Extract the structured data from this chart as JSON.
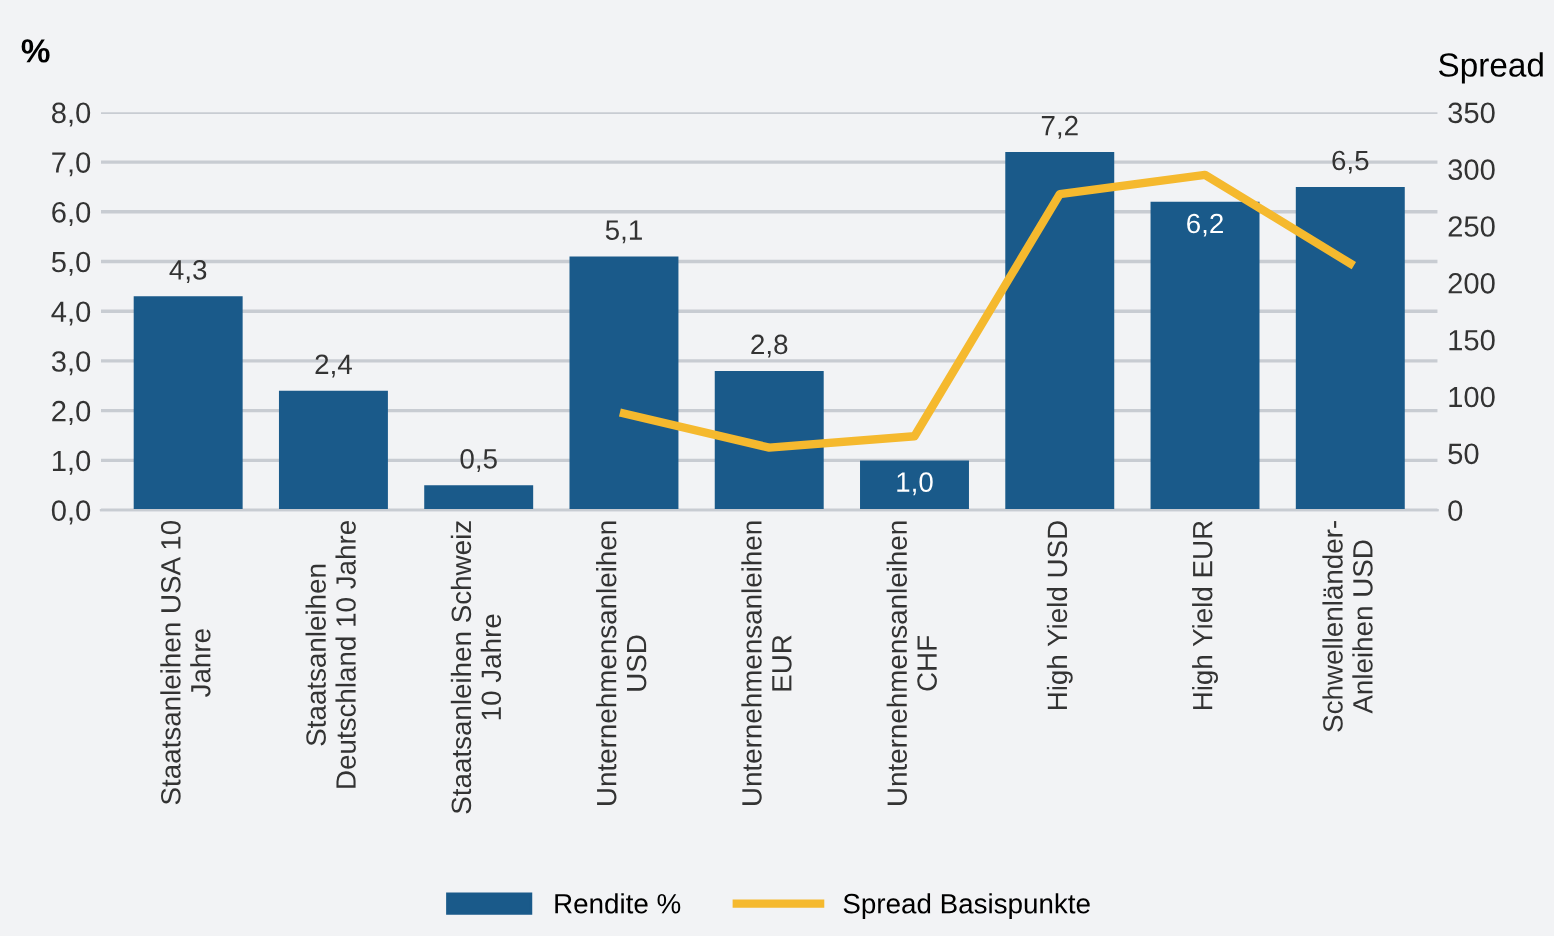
{
  "chart_data": {
    "type": "bar",
    "categories": [
      "Staatsanleihen USA 10\nJahre",
      "Staatsanleihen\nDeutschland 10 Jahre",
      "Staatsanleihen Schweiz\n10 Jahre",
      "Unternehmensanleihen\nUSD",
      "Unternehmensanleihen\nEUR",
      "Unternehmensanleihen\nCHF",
      "High Yield USD",
      "High Yield EUR",
      "Schwellenländer-\nAnleihen USD"
    ],
    "series": [
      {
        "name": "Rendite %",
        "type": "bar",
        "color": "#1a5a8a",
        "values": [
          4.3,
          2.4,
          0.5,
          5.1,
          2.8,
          1.0,
          7.2,
          6.2,
          6.5
        ],
        "value_labels": [
          "4,3",
          "2,4",
          "0,5",
          "5,1",
          "2,8",
          "1,0",
          "7,2",
          "6,2",
          "6,5"
        ]
      },
      {
        "name": "Spread Basispunkte",
        "type": "line",
        "axis": "y2",
        "color": "#f5b92e",
        "values": [
          null,
          null,
          null,
          85,
          55,
          65,
          278,
          295,
          217
        ]
      }
    ],
    "ylabel": "%",
    "y2label": "Spread",
    "ylim": [
      0,
      8
    ],
    "yticks": [
      {
        "value": 0,
        "label": "0,0"
      },
      {
        "value": 1,
        "label": "1,0"
      },
      {
        "value": 2,
        "label": "2,0"
      },
      {
        "value": 3,
        "label": "3,0"
      },
      {
        "value": 4,
        "label": "4,0"
      },
      {
        "value": 5,
        "label": "5,0"
      },
      {
        "value": 6,
        "label": "6,0"
      },
      {
        "value": 7,
        "label": "7,0"
      },
      {
        "value": 8,
        "label": "8,0"
      }
    ],
    "y2lim": [
      0,
      350
    ],
    "y2ticks": [
      0,
      50,
      100,
      150,
      200,
      250,
      300,
      350
    ],
    "grid": "y",
    "legend": "bottom",
    "marker": "none",
    "line_style": "solid"
  }
}
